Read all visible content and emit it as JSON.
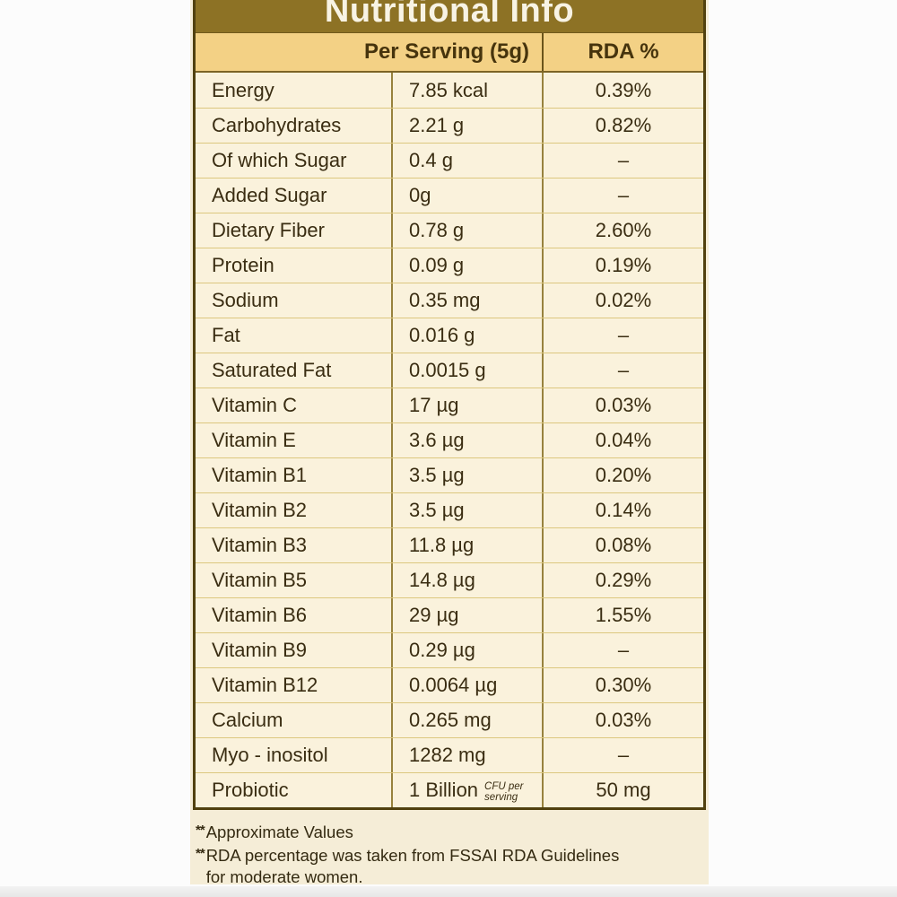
{
  "page": {
    "title": "Nutritional Info",
    "columns": {
      "serving": "Per Serving (5g)",
      "rda": "RDA %"
    },
    "rows": [
      {
        "label": "Energy",
        "value": "7.85 kcal",
        "rda": "0.39%"
      },
      {
        "label": "Carbohydrates",
        "value": "2.21 g",
        "rda": "0.82%"
      },
      {
        "label": "Of which Sugar",
        "value": "0.4 g",
        "rda": "–"
      },
      {
        "label": "Added Sugar",
        "value": "0g",
        "rda": "–"
      },
      {
        "label": "Dietary Fiber",
        "value": "0.78 g",
        "rda": "2.60%"
      },
      {
        "label": "Protein",
        "value": "0.09 g",
        "rda": "0.19%"
      },
      {
        "label": "Sodium",
        "value": "0.35 mg",
        "rda": "0.02%"
      },
      {
        "label": "Fat",
        "value": "0.016 g",
        "rda": "–"
      },
      {
        "label": "Saturated Fat",
        "value": "0.0015 g",
        "rda": "–"
      },
      {
        "label": "Vitamin C",
        "value": "17 µg",
        "rda": "0.03%"
      },
      {
        "label": "Vitamin E",
        "value": "3.6 µg",
        "rda": "0.04%"
      },
      {
        "label": "Vitamin B1",
        "value": "3.5 µg",
        "rda": "0.20%"
      },
      {
        "label": "Vitamin B2",
        "value": "3.5 µg",
        "rda": "0.14%"
      },
      {
        "label": "Vitamin B3",
        "value": "11.8 µg",
        "rda": "0.08%"
      },
      {
        "label": "Vitamin B5",
        "value": "14.8 µg",
        "rda": "0.29%"
      },
      {
        "label": "Vitamin B6",
        "value": "29 µg",
        "rda": "1.55%"
      },
      {
        "label": "Vitamin B9",
        "value": "0.29 µg",
        "rda": "–"
      },
      {
        "label": "Vitamin B12",
        "value": "0.0064 µg",
        "rda": "0.30%"
      },
      {
        "label": "Calcium",
        "value": "0.265 mg",
        "rda": "0.03%"
      },
      {
        "label": "Myo - inositol",
        "value": "1282 mg",
        "rda": "–"
      },
      {
        "label": "Probiotic",
        "value": "1 Billion",
        "note": [
          "CFU per",
          "serving"
        ],
        "rda": "50 mg"
      }
    ],
    "footnotes": [
      {
        "marker": "**",
        "lines": [
          "Approximate Values"
        ]
      },
      {
        "marker": "**",
        "lines": [
          "RDA percentage was taken from FSSAI RDA Guidelines",
          "for moderate women."
        ]
      }
    ],
    "colors": {
      "header_bg": "#8d7225",
      "subheader_bg": "#f3d185",
      "row_bg": "#faf2dc",
      "panel_bg": "#f5edd7",
      "border_dark": "#51410f",
      "text": "#3a2d12",
      "title_color": "#f8f3e4"
    }
  }
}
